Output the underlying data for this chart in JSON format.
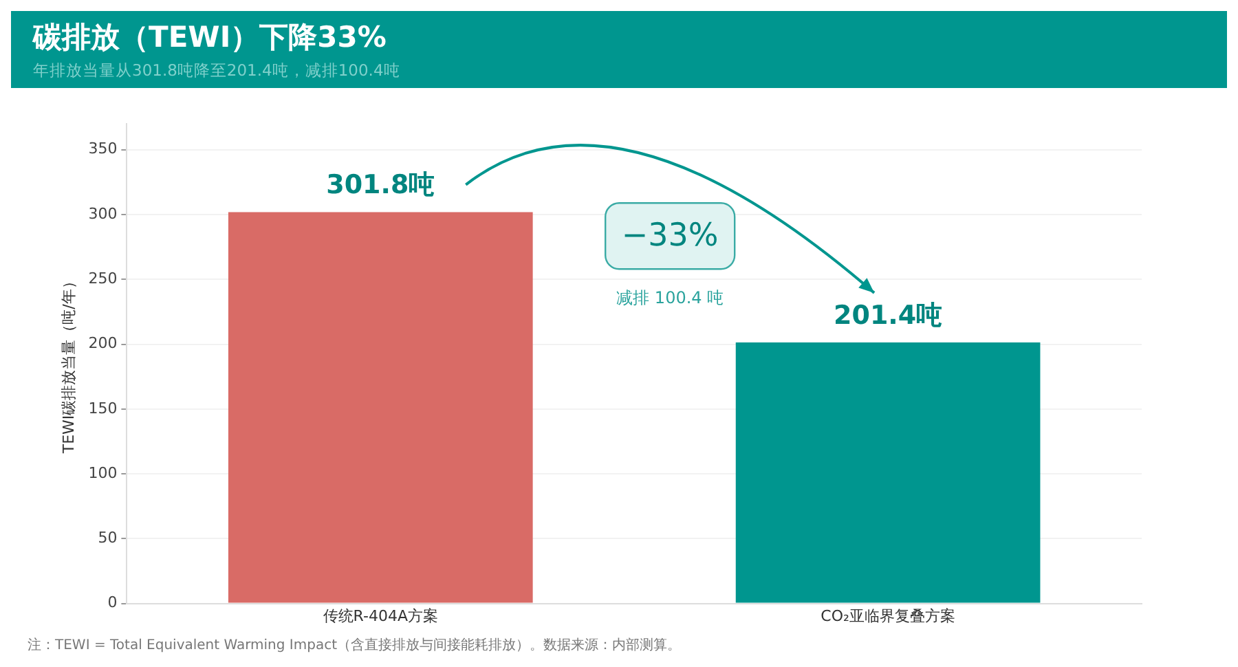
{
  "chart_data": {
    "type": "bar",
    "title": "碳排放（TEWI）下降33%",
    "subtitle": "年排放当量从301.8吨降至201.4吨，减排100.4吨",
    "ylabel": "TEWI碳排放当量（吨/年）",
    "categories": [
      "传统R-404A方案",
      "CO₂亚临界复叠方案"
    ],
    "values": [
      301.8,
      201.4
    ],
    "colors": [
      "#d96b66",
      "#00968f"
    ],
    "value_labels": [
      "301.8吨",
      "201.4吨"
    ],
    "ylim": [
      0,
      370
    ],
    "yticks": [
      0,
      50,
      100,
      150,
      200,
      250,
      300,
      350
    ],
    "grid": "y",
    "legend": false,
    "annotations": [
      "−33%",
      "减排 100.4 吨",
      "注：TEWI = Total Equivalent Warming Impact（含直接排放与间接能耗排放）。数据来源：内部测算。"
    ]
  }
}
